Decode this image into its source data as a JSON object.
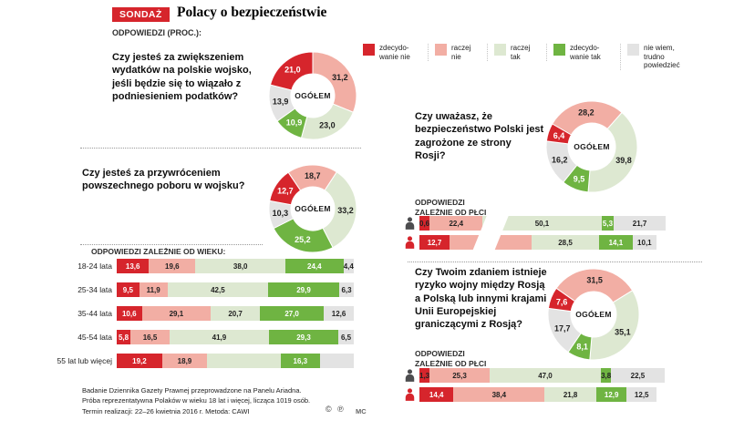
{
  "header": {
    "badge": "SONDAŻ",
    "title": "Polacy o bezpieczeństwie",
    "answers_label": "ODPOWIEDZI (PROC.):"
  },
  "palette": {
    "zdecydowanie_nie": "#d6252c",
    "raczej_nie": "#f2aea4",
    "raczej_tak": "#dde8d1",
    "zdecydowanie_tak": "#6fb442",
    "nie_wiem": "#e3e3e3"
  },
  "series_order": [
    "zdecydowanie_nie",
    "raczej_nie",
    "raczej_tak",
    "zdecydowanie_tak",
    "nie_wiem"
  ],
  "legend": [
    {
      "key": "zdecydowanie_nie",
      "label": "zdecydo-wanie nie"
    },
    {
      "key": "raczej_nie",
      "label": "raczej nie"
    },
    {
      "key": "raczej_tak",
      "label": "raczej tak"
    },
    {
      "key": "zdecydowanie_tak",
      "label": "zdecydo-wanie tak"
    },
    {
      "key": "nie_wiem",
      "label": "nie wiem, trudno powiedzieć"
    }
  ],
  "sections": {
    "q1": {
      "question": "Czy jesteś za zwiększeniem wydatków na polskie wojsko, jeśli będzie się to wiązało z podniesieniem podatków?"
    },
    "q2": {
      "question": "Czy jesteś za przywróceniem powszechnego poboru w wojsku?",
      "by_age_label": "ODPOWIEDZI ZALEŻNIE OD WIEKU:"
    },
    "q3": {
      "question": "Czy uważasz, że bezpieczeństwo Polski jest zagrożone ze strony Rosji?",
      "by_gender_label": "ODPOWIEDZI ZALEŻNIE OD PŁCI"
    },
    "q4": {
      "question": "Czy Twoim zdaniem istnieje ryzyko wojny między Rosją a Polską lub innymi krajami Unii Europejskiej graniczącymi z Rosją?",
      "by_gender_label": "ODPOWIEDZI ZALEŻNIE OD PŁCI"
    }
  },
  "donut_center_label": "OGÓŁEM",
  "chart_data": [
    {
      "id": "q1_total",
      "type": "pie",
      "subtype": "donut",
      "units": "percent",
      "title": "Czy jesteś za zwiększeniem wydatków na polskie wojsko, jeśli będzie się to wiązało z podniesieniem podatków? (ogółem)",
      "start_deg": -90,
      "segments": [
        {
          "key": "raczej_nie",
          "value": 31.2,
          "label": "31,2"
        },
        {
          "key": "raczej_tak",
          "value": 23.0,
          "label": "23,0"
        },
        {
          "key": "zdecydowanie_tak",
          "value": 10.9,
          "label": "10,9"
        },
        {
          "key": "nie_wiem",
          "value": 13.9,
          "label": "13,9"
        },
        {
          "key": "zdecydowanie_nie",
          "value": 21.0,
          "label": "21,0"
        }
      ]
    },
    {
      "id": "q2_total",
      "type": "pie",
      "subtype": "donut",
      "units": "percent",
      "title": "Czy jesteś za przywróceniem powszechnego poboru w wojsku? (ogółem)",
      "start_deg": -124,
      "segments": [
        {
          "key": "raczej_nie",
          "value": 18.7,
          "label": "18,7"
        },
        {
          "key": "raczej_tak",
          "value": 33.2,
          "label": "33,2"
        },
        {
          "key": "zdecydowanie_tak",
          "value": 25.2,
          "label": "25,2"
        },
        {
          "key": "nie_wiem",
          "value": 10.3,
          "label": "10,3"
        },
        {
          "key": "zdecydowanie_nie",
          "value": 12.7,
          "label": "12,7"
        }
      ]
    },
    {
      "id": "q3_total",
      "type": "pie",
      "subtype": "donut",
      "units": "percent",
      "title": "Czy uważasz, że bezpieczeństwo Polski jest zagrożone ze strony Rosji? (ogółem)",
      "start_deg": -150,
      "segments": [
        {
          "key": "raczej_nie",
          "value": 28.2,
          "label": "28,2"
        },
        {
          "key": "raczej_tak",
          "value": 39.8,
          "label": "39,8"
        },
        {
          "key": "zdecydowanie_tak",
          "value": 9.5,
          "label": "9,5"
        },
        {
          "key": "nie_wiem",
          "value": 16.2,
          "label": "16,2"
        },
        {
          "key": "zdecydowanie_nie",
          "value": 6.4,
          "label": "6,4"
        }
      ]
    },
    {
      "id": "q4_total",
      "type": "pie",
      "subtype": "donut",
      "units": "percent",
      "title": "Czy Twoim zdaniem istnieje ryzyko wojny między Rosją a Polską lub innymi krajami UE graniczącymi z Rosją? (ogółem)",
      "start_deg": -145,
      "segments": [
        {
          "key": "raczej_nie",
          "value": 31.5,
          "label": "31,5"
        },
        {
          "key": "raczej_tak",
          "value": 35.1,
          "label": "35,1"
        },
        {
          "key": "zdecydowanie_tak",
          "value": 8.1,
          "label": "8,1"
        },
        {
          "key": "nie_wiem",
          "value": 17.7,
          "label": "17,7"
        },
        {
          "key": "zdecydowanie_nie",
          "value": 7.6,
          "label": "7,6"
        }
      ]
    },
    {
      "id": "q2_by_age",
      "type": "bar",
      "stacked": true,
      "units": "percent",
      "title": "ODPOWIEDZI ZALEŻNIE OD WIEKU:",
      "rows": [
        {
          "label": "18-24 lata",
          "values": [
            13.6,
            19.6,
            38.0,
            24.4,
            4.4
          ],
          "value_labels": [
            "13,6",
            "19,6",
            "38,0",
            "24,4",
            "4,4"
          ]
        },
        {
          "label": "25-34 lata",
          "values": [
            9.5,
            11.9,
            42.5,
            29.9,
            6.3
          ],
          "value_labels": [
            "9,5",
            "11,9",
            "42,5",
            "29,9",
            "6,3"
          ]
        },
        {
          "label": "35-44 lata",
          "values": [
            10.6,
            29.1,
            20.7,
            27.0,
            12.6
          ],
          "value_labels": [
            "10,6",
            "29,1",
            "20,7",
            "27,0",
            "12,6"
          ]
        },
        {
          "label": "45-54 lata",
          "values": [
            5.8,
            16.5,
            41.9,
            29.3,
            6.5
          ],
          "value_labels": [
            "5,8",
            "16,5",
            "41,9",
            "29,3",
            "6,5"
          ]
        },
        {
          "label": "55 lat lub więcej",
          "values": [
            19.2,
            18.9,
            31.2,
            16.3,
            14.4
          ],
          "value_labels": [
            "19,2",
            "18,9",
            "",
            "16,3",
            ""
          ]
        }
      ]
    },
    {
      "id": "q3_by_gender",
      "type": "bar",
      "stacked": true,
      "units": "percent",
      "title": "ODPOWIEDZI ZALEŻNIE OD PŁCI",
      "break_overlay": true,
      "rows": [
        {
          "group": "female",
          "icon_color": "#4d4d4f",
          "values": [
            0.6,
            22.4,
            50.1,
            5.3,
            21.7
          ],
          "value_labels": [
            "0,6",
            "22,4",
            "50,1",
            "5,3",
            "21,7"
          ]
        },
        {
          "group": "male",
          "icon_color": "#d6252c",
          "values": [
            12.7,
            34.6,
            28.5,
            14.1,
            10.1
          ],
          "value_labels": [
            "12,7",
            "",
            "28,5",
            "14,1",
            "10,1"
          ]
        }
      ]
    },
    {
      "id": "q4_by_gender",
      "type": "bar",
      "stacked": true,
      "units": "percent",
      "title": "ODPOWIEDZI ZALEŻNIE OD PŁCI",
      "rows": [
        {
          "group": "female",
          "icon_color": "#4d4d4f",
          "values": [
            1.3,
            25.3,
            47.0,
            3.8,
            22.5
          ],
          "value_labels": [
            "1,3",
            "25,3",
            "47,0",
            "3,8",
            "22,5"
          ]
        },
        {
          "group": "male",
          "icon_color": "#d6252c",
          "values": [
            14.4,
            38.4,
            21.8,
            12.9,
            12.5
          ],
          "value_labels": [
            "14,4",
            "38,4",
            "21,8",
            "12,9",
            "12,5"
          ]
        }
      ]
    }
  ],
  "footer": {
    "lines": [
      "Badanie Dziennika Gazety Prawnej przeprowadzone na Panelu Ariadna.",
      "Próba reprezentatywna Polaków w wieku 18 lat i więcej, licząca 1019 osób.",
      "Termin realizacji: 22–26 kwietnia 2016 r. Metoda: CAWI"
    ],
    "marks": "© ℗",
    "initials": "MC"
  }
}
